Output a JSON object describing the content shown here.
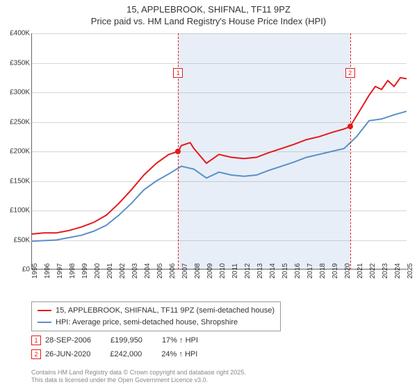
{
  "title": {
    "line1": "15, APPLEBROOK, SHIFNAL, TF11 9PZ",
    "line2": "Price paid vs. HM Land Registry's House Price Index (HPI)"
  },
  "chart": {
    "type": "line",
    "ylim": [
      0,
      400000
    ],
    "ytick_step": 50000,
    "y_ticks": [
      "£0",
      "£50K",
      "£100K",
      "£150K",
      "£200K",
      "£250K",
      "£300K",
      "£350K",
      "£400K"
    ],
    "x_years": [
      1995,
      1996,
      1997,
      1998,
      1999,
      2000,
      2001,
      2002,
      2003,
      2004,
      2005,
      2006,
      2007,
      2008,
      2009,
      2010,
      2011,
      2012,
      2013,
      2014,
      2015,
      2016,
      2017,
      2018,
      2019,
      2020,
      2021,
      2022,
      2023,
      2024,
      2025
    ],
    "shade_band": {
      "start_year": 2006.74,
      "end_year": 2020.48
    },
    "grid_color": "#999999",
    "background_color": "#ffffff",
    "axis_fontsize": 10,
    "series": [
      {
        "name": "price_paid",
        "label": "15, APPLEBROOK, SHIFNAL, TF11 9PZ (semi-detached house)",
        "color": "#e41a1c",
        "line_width": 2,
        "points": [
          [
            1995,
            60000
          ],
          [
            1996,
            62000
          ],
          [
            1997,
            62000
          ],
          [
            1998,
            66000
          ],
          [
            1999,
            72000
          ],
          [
            2000,
            80000
          ],
          [
            2001,
            92000
          ],
          [
            2002,
            112000
          ],
          [
            2003,
            135000
          ],
          [
            2004,
            160000
          ],
          [
            2005,
            180000
          ],
          [
            2006,
            195000
          ],
          [
            2006.74,
            199950
          ],
          [
            2007,
            210000
          ],
          [
            2007.7,
            215000
          ],
          [
            2008,
            205000
          ],
          [
            2009,
            180000
          ],
          [
            2010,
            195000
          ],
          [
            2011,
            190000
          ],
          [
            2012,
            188000
          ],
          [
            2013,
            190000
          ],
          [
            2014,
            198000
          ],
          [
            2015,
            205000
          ],
          [
            2016,
            212000
          ],
          [
            2017,
            220000
          ],
          [
            2018,
            225000
          ],
          [
            2019,
            232000
          ],
          [
            2020,
            238000
          ],
          [
            2020.48,
            242000
          ],
          [
            2021,
            260000
          ],
          [
            2022,
            295000
          ],
          [
            2022.5,
            310000
          ],
          [
            2023,
            305000
          ],
          [
            2023.5,
            320000
          ],
          [
            2024,
            310000
          ],
          [
            2024.5,
            325000
          ],
          [
            2025,
            323000
          ]
        ]
      },
      {
        "name": "hpi",
        "label": "HPI: Average price, semi-detached house, Shropshire",
        "color": "#5a8fc8",
        "line_width": 2,
        "points": [
          [
            1995,
            48000
          ],
          [
            1996,
            49000
          ],
          [
            1997,
            50000
          ],
          [
            1998,
            54000
          ],
          [
            1999,
            58000
          ],
          [
            2000,
            65000
          ],
          [
            2001,
            75000
          ],
          [
            2002,
            92000
          ],
          [
            2003,
            112000
          ],
          [
            2004,
            135000
          ],
          [
            2005,
            150000
          ],
          [
            2006,
            162000
          ],
          [
            2007,
            175000
          ],
          [
            2008,
            170000
          ],
          [
            2009,
            155000
          ],
          [
            2010,
            165000
          ],
          [
            2011,
            160000
          ],
          [
            2012,
            158000
          ],
          [
            2013,
            160000
          ],
          [
            2014,
            168000
          ],
          [
            2015,
            175000
          ],
          [
            2016,
            182000
          ],
          [
            2017,
            190000
          ],
          [
            2018,
            195000
          ],
          [
            2019,
            200000
          ],
          [
            2020,
            205000
          ],
          [
            2021,
            225000
          ],
          [
            2022,
            252000
          ],
          [
            2023,
            255000
          ],
          [
            2024,
            262000
          ],
          [
            2025,
            268000
          ]
        ]
      }
    ],
    "sale_markers": [
      {
        "n": "1",
        "year": 2006.74,
        "value": 199950,
        "color": "#e41a1c"
      },
      {
        "n": "2",
        "year": 2020.48,
        "value": 242000,
        "color": "#e41a1c"
      }
    ]
  },
  "legend": {
    "series1": "15, APPLEBROOK, SHIFNAL, TF11 9PZ (semi-detached house)",
    "series2": "HPI: Average price, semi-detached house, Shropshire"
  },
  "sales": [
    {
      "n": "1",
      "date": "28-SEP-2006",
      "price": "£199,950",
      "delta": "17% ↑ HPI",
      "color": "#e41a1c"
    },
    {
      "n": "2",
      "date": "26-JUN-2020",
      "price": "£242,000",
      "delta": "24% ↑ HPI",
      "color": "#e41a1c"
    }
  ],
  "footer": {
    "line1": "Contains HM Land Registry data © Crown copyright and database right 2025.",
    "line2": "This data is licensed under the Open Government Licence v3.0."
  },
  "colors": {
    "series1": "#e41a1c",
    "series2": "#5a8fc8",
    "shade": "rgba(120,160,210,0.18)"
  }
}
